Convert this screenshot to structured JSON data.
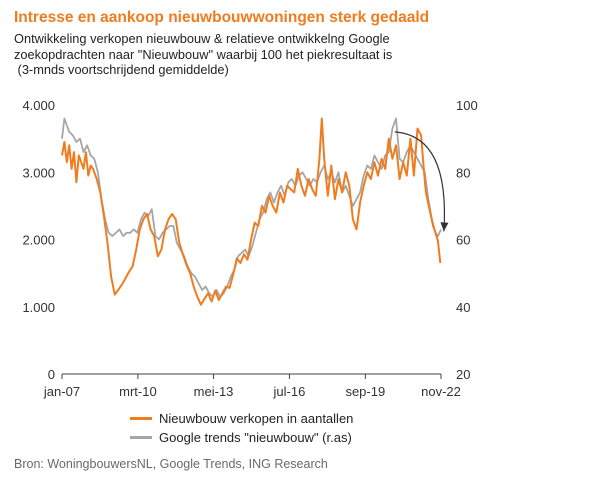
{
  "title": "Intresse en aankoop nieuwbouwwoningen sterk gedaald",
  "subtitle": [
    "Ontwikkeling verkopen nieuwbouw & relatieve ontwikkelng Google",
    "zoekopdrachten naar \"Nieuwbouw\" waarbij 100 het piekresultaat is",
    " (3-mnds voortschrijdend gemiddelde)"
  ],
  "source": "Bron: WoningbouwersNL, Google Trends, ING Research",
  "colors": {
    "sales": "#f07c20",
    "google": "#a6a6a6",
    "arrow": "#333333",
    "title": "#f07c20"
  },
  "chart_data": {
    "type": "line",
    "x_tick_labels": [
      "jan-07",
      "mrt-10",
      "mei-13",
      "jul-16",
      "sep-19",
      "nov-22"
    ],
    "x_tick_years": [
      2007.0,
      2010.17,
      2013.33,
      2016.5,
      2019.67,
      2022.83
    ],
    "xlim": [
      2007.0,
      2022.83
    ],
    "y_left": {
      "lim": [
        0,
        4000
      ],
      "ticks": [
        0,
        1000,
        2000,
        3000,
        4000
      ],
      "tick_labels": [
        "0",
        "1.000",
        "2.000",
        "3.000",
        "4.000"
      ]
    },
    "y_right": {
      "lim": [
        20,
        100
      ],
      "ticks": [
        20,
        40,
        60,
        80,
        100
      ],
      "tick_labels": [
        "20",
        "40",
        "60",
        "80",
        "100"
      ]
    },
    "grid": false,
    "legend_position": "bottom",
    "series": [
      {
        "name": "Nieuwbouw verkopen in aantallen",
        "axis": "left",
        "color": "#f07c20",
        "points": [
          [
            2007.0,
            3250
          ],
          [
            2007.1,
            3450
          ],
          [
            2007.2,
            3150
          ],
          [
            2007.3,
            3400
          ],
          [
            2007.4,
            3050
          ],
          [
            2007.5,
            3300
          ],
          [
            2007.6,
            2850
          ],
          [
            2007.7,
            3250
          ],
          [
            2007.8,
            3150
          ],
          [
            2007.9,
            3050
          ],
          [
            2008.0,
            3300
          ],
          [
            2008.1,
            2950
          ],
          [
            2008.2,
            3100
          ],
          [
            2008.3,
            3050
          ],
          [
            2008.45,
            2900
          ],
          [
            2008.6,
            2700
          ],
          [
            2008.75,
            2350
          ],
          [
            2008.9,
            1950
          ],
          [
            2009.05,
            1450
          ],
          [
            2009.2,
            1180
          ],
          [
            2009.35,
            1250
          ],
          [
            2009.5,
            1330
          ],
          [
            2009.65,
            1420
          ],
          [
            2009.8,
            1520
          ],
          [
            2009.95,
            1600
          ],
          [
            2010.1,
            1850
          ],
          [
            2010.25,
            2150
          ],
          [
            2010.4,
            2300
          ],
          [
            2010.55,
            2380
          ],
          [
            2010.7,
            2150
          ],
          [
            2010.85,
            2050
          ],
          [
            2011.0,
            1750
          ],
          [
            2011.15,
            1850
          ],
          [
            2011.3,
            2150
          ],
          [
            2011.45,
            2300
          ],
          [
            2011.6,
            2380
          ],
          [
            2011.75,
            2300
          ],
          [
            2011.9,
            1950
          ],
          [
            2012.05,
            1780
          ],
          [
            2012.2,
            1620
          ],
          [
            2012.35,
            1500
          ],
          [
            2012.5,
            1300
          ],
          [
            2012.65,
            1150
          ],
          [
            2012.8,
            1030
          ],
          [
            2012.95,
            1120
          ],
          [
            2013.1,
            1200
          ],
          [
            2013.25,
            1080
          ],
          [
            2013.4,
            1240
          ],
          [
            2013.55,
            1100
          ],
          [
            2013.7,
            1200
          ],
          [
            2013.85,
            1300
          ],
          [
            2014.0,
            1280
          ],
          [
            2014.15,
            1480
          ],
          [
            2014.3,
            1720
          ],
          [
            2014.45,
            1650
          ],
          [
            2014.6,
            1780
          ],
          [
            2014.75,
            1700
          ],
          [
            2014.9,
            2000
          ],
          [
            2015.05,
            2250
          ],
          [
            2015.2,
            2200
          ],
          [
            2015.35,
            2500
          ],
          [
            2015.5,
            2400
          ],
          [
            2015.65,
            2650
          ],
          [
            2015.8,
            2500
          ],
          [
            2015.95,
            2400
          ],
          [
            2016.1,
            2700
          ],
          [
            2016.25,
            2550
          ],
          [
            2016.4,
            2800
          ],
          [
            2016.55,
            2750
          ],
          [
            2016.7,
            2700
          ],
          [
            2016.85,
            3050
          ],
          [
            2017.0,
            2800
          ],
          [
            2017.15,
            2650
          ],
          [
            2017.3,
            2900
          ],
          [
            2017.45,
            2750
          ],
          [
            2017.6,
            2650
          ],
          [
            2017.75,
            3200
          ],
          [
            2017.85,
            3800
          ],
          [
            2017.95,
            3200
          ],
          [
            2018.1,
            2650
          ],
          [
            2018.25,
            3100
          ],
          [
            2018.4,
            2600
          ],
          [
            2018.55,
            2900
          ],
          [
            2018.7,
            2700
          ],
          [
            2018.85,
            3000
          ],
          [
            2019.0,
            2800
          ],
          [
            2019.15,
            2300
          ],
          [
            2019.3,
            2150
          ],
          [
            2019.45,
            2550
          ],
          [
            2019.6,
            2800
          ],
          [
            2019.75,
            3000
          ],
          [
            2019.9,
            2900
          ],
          [
            2020.05,
            3150
          ],
          [
            2020.2,
            2950
          ],
          [
            2020.35,
            3200
          ],
          [
            2020.5,
            3050
          ],
          [
            2020.65,
            3500
          ],
          [
            2020.8,
            3200
          ],
          [
            2020.95,
            3400
          ],
          [
            2021.1,
            2900
          ],
          [
            2021.25,
            3150
          ],
          [
            2021.4,
            2950
          ],
          [
            2021.55,
            3500
          ],
          [
            2021.7,
            2950
          ],
          [
            2021.85,
            3650
          ],
          [
            2022.0,
            3550
          ],
          [
            2022.1,
            3100
          ],
          [
            2022.2,
            2700
          ],
          [
            2022.35,
            2450
          ],
          [
            2022.5,
            2200
          ],
          [
            2022.6,
            2100
          ],
          [
            2022.7,
            1980
          ],
          [
            2022.8,
            1650
          ]
        ]
      },
      {
        "name": "Google trends \"nieuwbouw\" (r.as)",
        "axis": "right",
        "color": "#a6a6a6",
        "points": [
          [
            2007.0,
            90
          ],
          [
            2007.1,
            96
          ],
          [
            2007.2,
            94
          ],
          [
            2007.3,
            92
          ],
          [
            2007.45,
            91
          ],
          [
            2007.6,
            89
          ],
          [
            2007.75,
            90
          ],
          [
            2007.9,
            86
          ],
          [
            2008.05,
            88
          ],
          [
            2008.2,
            85
          ],
          [
            2008.35,
            84
          ],
          [
            2008.5,
            80
          ],
          [
            2008.65,
            72
          ],
          [
            2008.8,
            66
          ],
          [
            2008.95,
            62
          ],
          [
            2009.1,
            61
          ],
          [
            2009.25,
            62
          ],
          [
            2009.4,
            63
          ],
          [
            2009.55,
            61
          ],
          [
            2009.7,
            62
          ],
          [
            2009.85,
            62
          ],
          [
            2010.0,
            63
          ],
          [
            2010.15,
            62
          ],
          [
            2010.3,
            66
          ],
          [
            2010.45,
            68
          ],
          [
            2010.6,
            67
          ],
          [
            2010.75,
            69
          ],
          [
            2010.9,
            61
          ],
          [
            2011.05,
            60
          ],
          [
            2011.2,
            62
          ],
          [
            2011.35,
            63
          ],
          [
            2011.5,
            64
          ],
          [
            2011.65,
            64
          ],
          [
            2011.8,
            59
          ],
          [
            2011.95,
            57
          ],
          [
            2012.1,
            55
          ],
          [
            2012.25,
            52
          ],
          [
            2012.4,
            50
          ],
          [
            2012.55,
            49
          ],
          [
            2012.7,
            47
          ],
          [
            2012.85,
            45
          ],
          [
            2013.0,
            46
          ],
          [
            2013.15,
            44
          ],
          [
            2013.3,
            43
          ],
          [
            2013.45,
            45
          ],
          [
            2013.6,
            43
          ],
          [
            2013.75,
            44
          ],
          [
            2013.9,
            46
          ],
          [
            2014.05,
            49
          ],
          [
            2014.2,
            51
          ],
          [
            2014.35,
            55
          ],
          [
            2014.5,
            56
          ],
          [
            2014.65,
            57
          ],
          [
            2014.8,
            55
          ],
          [
            2014.95,
            58
          ],
          [
            2015.1,
            62
          ],
          [
            2015.25,
            66
          ],
          [
            2015.4,
            68
          ],
          [
            2015.55,
            72
          ],
          [
            2015.7,
            74
          ],
          [
            2015.85,
            71
          ],
          [
            2016.0,
            74
          ],
          [
            2016.15,
            76
          ],
          [
            2016.3,
            73
          ],
          [
            2016.45,
            77
          ],
          [
            2016.6,
            78
          ],
          [
            2016.75,
            76
          ],
          [
            2016.9,
            79
          ],
          [
            2017.05,
            80
          ],
          [
            2017.2,
            78
          ],
          [
            2017.35,
            76
          ],
          [
            2017.5,
            78
          ],
          [
            2017.65,
            77
          ],
          [
            2017.8,
            80
          ],
          [
            2017.95,
            82
          ],
          [
            2018.1,
            78
          ],
          [
            2018.25,
            80
          ],
          [
            2018.4,
            77
          ],
          [
            2018.55,
            80
          ],
          [
            2018.7,
            74
          ],
          [
            2018.85,
            76
          ],
          [
            2019.0,
            73
          ],
          [
            2019.15,
            70
          ],
          [
            2019.3,
            72
          ],
          [
            2019.45,
            74
          ],
          [
            2019.6,
            79
          ],
          [
            2019.75,
            82
          ],
          [
            2019.9,
            81
          ],
          [
            2020.05,
            85
          ],
          [
            2020.2,
            83
          ],
          [
            2020.35,
            81
          ],
          [
            2020.5,
            85
          ],
          [
            2020.65,
            86
          ],
          [
            2020.8,
            93
          ],
          [
            2020.95,
            96
          ],
          [
            2021.1,
            84
          ],
          [
            2021.25,
            83
          ],
          [
            2021.4,
            86
          ],
          [
            2021.55,
            88
          ],
          [
            2021.7,
            86
          ],
          [
            2021.85,
            84
          ],
          [
            2022.0,
            82
          ],
          [
            2022.15,
            80
          ],
          [
            2022.3,
            72
          ],
          [
            2022.45,
            66
          ],
          [
            2022.6,
            62
          ],
          [
            2022.7,
            61
          ],
          [
            2022.83,
            63
          ]
        ]
      }
    ],
    "annotations": [
      {
        "type": "arrow",
        "description": "curved downward arrow",
        "from": [
          2020.9,
          3600
        ],
        "to": [
          2022.95,
          2120
        ]
      }
    ]
  }
}
